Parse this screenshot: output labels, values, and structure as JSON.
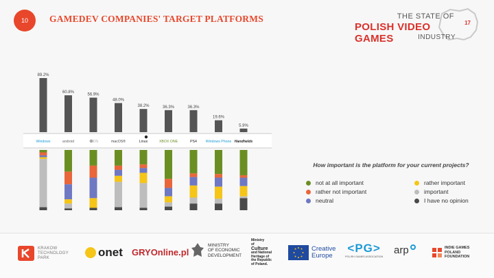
{
  "page_number": "10",
  "title": "GAMEDEV COMPANIES' TARGET PLATFORMS",
  "brand": {
    "line1": "THE STATE OF",
    "line2": "POLISH VIDEO GAMES",
    "sup": "17",
    "line3": "INDUSTRY"
  },
  "question": "How important is the platform for your current projects?",
  "colors": {
    "accent": "#e8472b",
    "bar": "#555555",
    "not_at_all_important": "#6b8e23",
    "rather_not_important": "#e8663a",
    "neutral": "#6f78c2",
    "rather_important": "#f5c518",
    "important": "#bdbdbd",
    "no_opinion": "#4a4a4a"
  },
  "chart_data": {
    "type": "bar",
    "categories": [
      "Windows",
      "android",
      "iOS",
      "macOS",
      "Linux",
      "XBOX ONE",
      "PS4",
      "Windows Phone",
      "Handhelds"
    ],
    "category_labels": [
      "Windows",
      "android",
      "",
      "macOS®",
      "Linux",
      "XBOX ONE",
      "PS4",
      "Windows Phone",
      "Handhelds"
    ],
    "values": [
      89.2,
      60.8,
      56.9,
      48.0,
      38.2,
      36.3,
      36.3,
      19.6,
      5.9
    ],
    "value_labels": [
      "89.2%",
      "60.8%",
      "56.9%",
      "48.0%",
      "38.2%",
      "36.3%",
      "36.3%",
      "19.6%",
      "5.9%"
    ],
    "ylim": [
      0,
      100
    ],
    "importance": {
      "type": "stacked-bar",
      "legend_title": "How important is the platform for your current projects?",
      "series": [
        {
          "name": "not at all important",
          "values": [
            4,
            36,
            26,
            26,
            24,
            48,
            39,
            40,
            42
          ]
        },
        {
          "name": "rather not important",
          "values": [
            5,
            21,
            20,
            7,
            6,
            15,
            6,
            6,
            4
          ]
        },
        {
          "name": "neutral",
          "values": [
            3,
            25,
            34,
            10,
            8,
            14,
            14,
            15,
            14
          ]
        },
        {
          "name": "rather important",
          "values": [
            3,
            7,
            16,
            10,
            17,
            10,
            20,
            20,
            17
          ]
        },
        {
          "name": "important",
          "values": [
            80,
            8,
            0,
            42,
            41,
            7,
            10,
            8,
            3
          ]
        },
        {
          "name": "I have no opinion",
          "values": [
            5,
            3,
            4,
            5,
            4,
            6,
            11,
            11,
            20
          ]
        }
      ]
    }
  },
  "legend_items": [
    {
      "label": "not at all important",
      "color": "#6b8e23"
    },
    {
      "label": "rather important",
      "color": "#f5c518"
    },
    {
      "label": "rather not important",
      "color": "#e8663a"
    },
    {
      "label": "important",
      "color": "#bdbdbd"
    },
    {
      "label": "neutral",
      "color": "#6f78c2"
    },
    {
      "label": "I have no opinion",
      "color": "#4a4a4a"
    }
  ],
  "footer": {
    "krakow": [
      "KRAKOW",
      "TECHNOLOGY",
      "PARK"
    ],
    "onet": "onet",
    "gry": "GRYOnline.pl",
    "ministry_econ": [
      "MINISTRY",
      "OF ECONOMIC",
      "DEVELOPMENT"
    ],
    "ministry_culture": [
      "Ministry",
      "of",
      "Culture",
      "and National",
      "Heritage of",
      "the Republic",
      "of Poland."
    ],
    "creative": [
      "Creative",
      "Europe"
    ],
    "pg": "PG",
    "pg_sub": "POLISH GAMES ASSOCIATION",
    "arp": "arp",
    "igpf": [
      "INDIE GAMES",
      "POLAND",
      "FOUNDATION"
    ]
  }
}
